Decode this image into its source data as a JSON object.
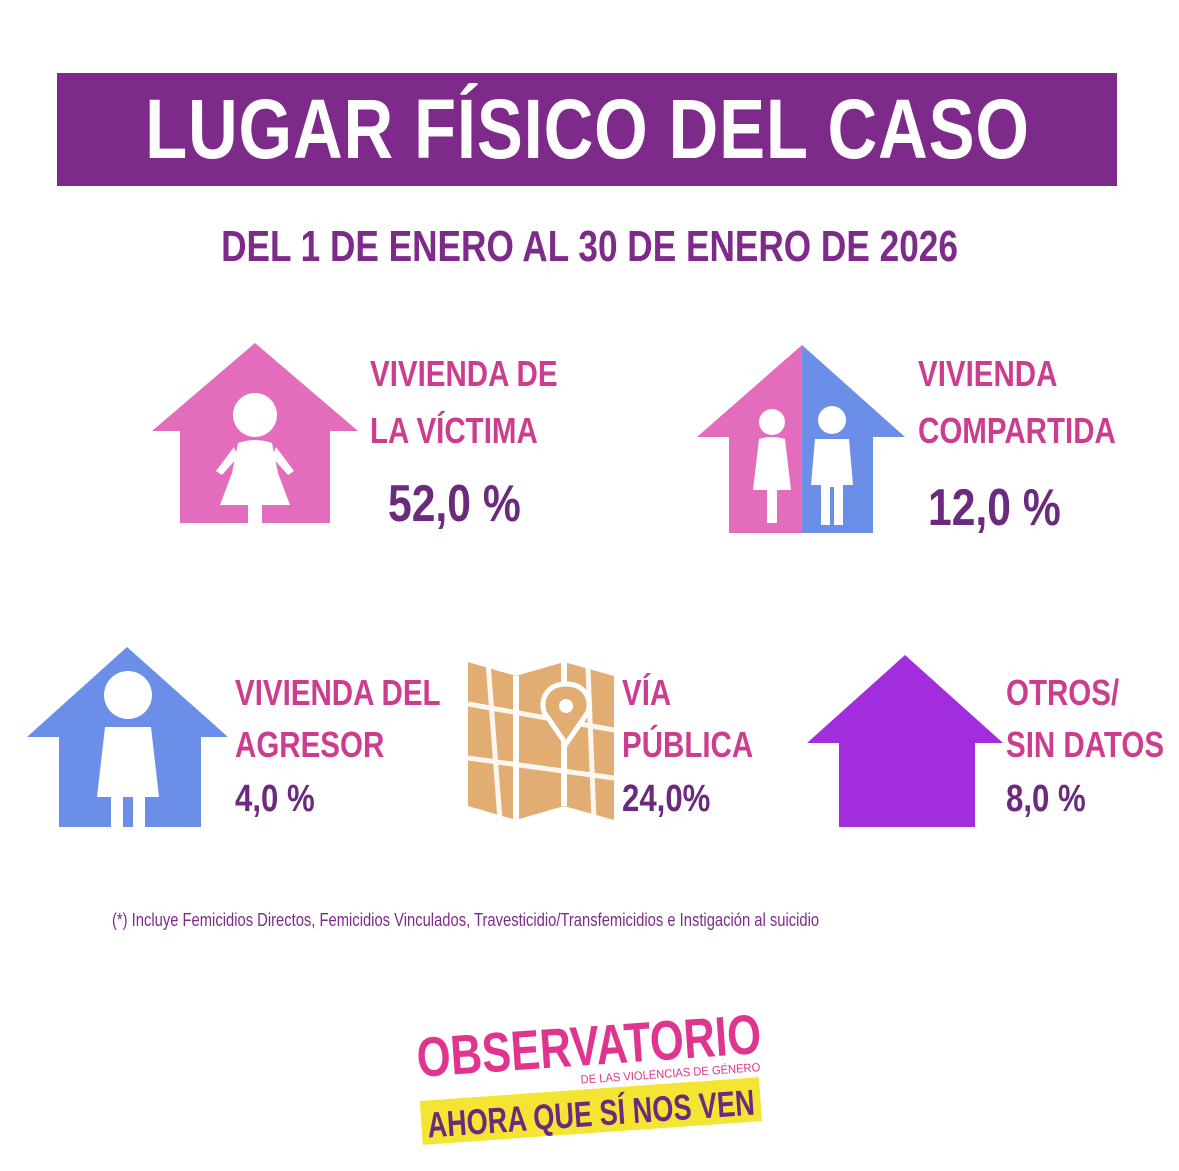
{
  "title": "LUGAR FÍSICO DEL CASO",
  "subtitle": "DEL 1 DE ENERO AL 30 DE ENERO DE 2026",
  "categories": [
    {
      "line1": "VIVIENDA DE",
      "line2": "LA VÍCTIMA",
      "value": "52,0 %",
      "icon": "pink-house-woman-icon"
    },
    {
      "line1": "VIVIENDA",
      "line2": "COMPARTIDA",
      "value": "12,0 %",
      "icon": "shared-house-couple-icon"
    },
    {
      "line1": "VIVIENDA DEL",
      "line2": "AGRESOR",
      "value": "4,0 %",
      "icon": "blue-house-man-icon"
    },
    {
      "line1": "VÍA",
      "line2": "PÚBLICA",
      "value": "24,0%",
      "icon": "map-pin-icon"
    },
    {
      "line1": "OTROS/",
      "line2": "SIN DATOS",
      "value": "8,0 %",
      "icon": "purple-house-icon"
    }
  ],
  "footnote": "(*) Incluye Femicidios Directos, Femicidios Vinculados,  Travesticidio/Transfemicidios e Instigación al suicidio",
  "logo": {
    "name": "OBSERVATORIO",
    "tagline": "DE LAS VIOLENCIAS DE GÉNERO",
    "slogan": "AHORA QUE SÍ NOS VEN"
  },
  "colors": {
    "purple_banner": "#7e2a8a",
    "pink": "#e46cbc",
    "blue": "#6b8ee8",
    "violet": "#a12ddc",
    "map_tan": "#e2ad72",
    "label_pink": "#cc3d8f",
    "value_purple": "#6a2a7d",
    "logo_yellow": "#f4e534"
  }
}
